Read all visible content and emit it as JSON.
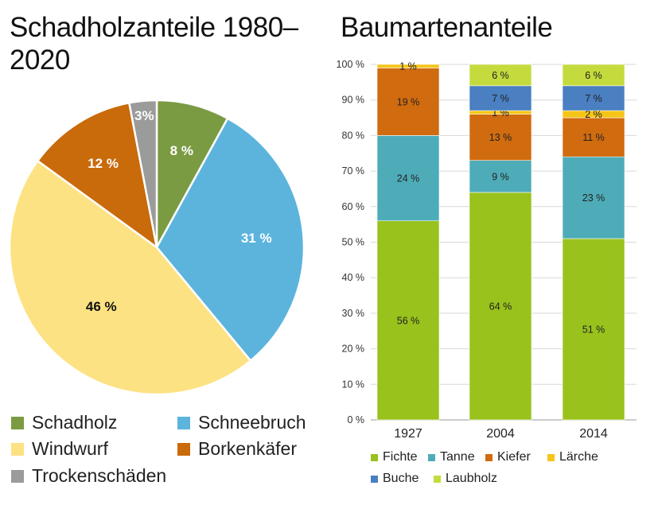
{
  "pie_title": "Schadholzanteile 1980–2020",
  "bar_title": "Baumartenanteile",
  "chart_data": [
    {
      "type": "pie",
      "title": "Schadholzanteile 1980–2020",
      "slices": [
        {
          "name": "Schadholz",
          "value": 8,
          "label": "8 %",
          "color": "#7a9b42",
          "label_color": "#ffffff"
        },
        {
          "name": "Schneebruch",
          "value": 31,
          "label": "31 %",
          "color": "#5cb4dd",
          "label_color": "#ffffff"
        },
        {
          "name": "Windwurf",
          "value": 46,
          "label": "46 %",
          "color": "#fde283",
          "label_color": "#111111"
        },
        {
          "name": "Borkenkäfer",
          "value": 12,
          "label": "12 %",
          "color": "#c96a0b",
          "label_color": "#ffffff"
        },
        {
          "name": "Trockenschäden",
          "value": 3,
          "label": "3%",
          "color": "#9c9b9b",
          "label_color": "#ffffff"
        }
      ],
      "legend": [
        "Schadholz",
        "Schneebruch",
        "Windwurf",
        "Borkenkäfer",
        "Trockenschäden"
      ]
    },
    {
      "type": "bar",
      "stacked": true,
      "title": "Baumartenanteile",
      "categories": [
        "1927",
        "2004",
        "2014"
      ],
      "ylim": [
        0,
        100
      ],
      "yticks": [
        "0 %",
        "10 %",
        "20 %",
        "30 %",
        "40 %",
        "50 %",
        "60 %",
        "70 %",
        "80 %",
        "90 %",
        "100 %"
      ],
      "series": [
        {
          "name": "Fichte",
          "color": "#99c21c",
          "values": [
            56,
            64,
            51
          ],
          "labels": [
            "56 %",
            "64 %",
            "51 %"
          ]
        },
        {
          "name": "Tanne",
          "color": "#4eacb8",
          "values": [
            24,
            9,
            23
          ],
          "labels": [
            "24 %",
            "9 %",
            "23 %"
          ]
        },
        {
          "name": "Kiefer",
          "color": "#d06b0f",
          "values": [
            19,
            13,
            11
          ],
          "labels": [
            "19 %",
            "13 %",
            "11 %"
          ]
        },
        {
          "name": "Lärche",
          "color": "#f5c518",
          "values": [
            1,
            1,
            2
          ],
          "labels": [
            "1 %",
            "1 %",
            "2 %"
          ]
        },
        {
          "name": "Buche",
          "color": "#4a7fc1",
          "values": [
            0,
            7,
            7
          ],
          "labels": [
            "",
            "7 %",
            "7 %"
          ]
        },
        {
          "name": "Laubholz",
          "color": "#c5db3d",
          "values": [
            0,
            6,
            6
          ],
          "labels": [
            "",
            "6 %",
            "6 %"
          ]
        }
      ],
      "legend": [
        "Fichte",
        "Tanne",
        "Kiefer",
        "Lärche",
        "Buche",
        "Laubholz"
      ]
    }
  ]
}
